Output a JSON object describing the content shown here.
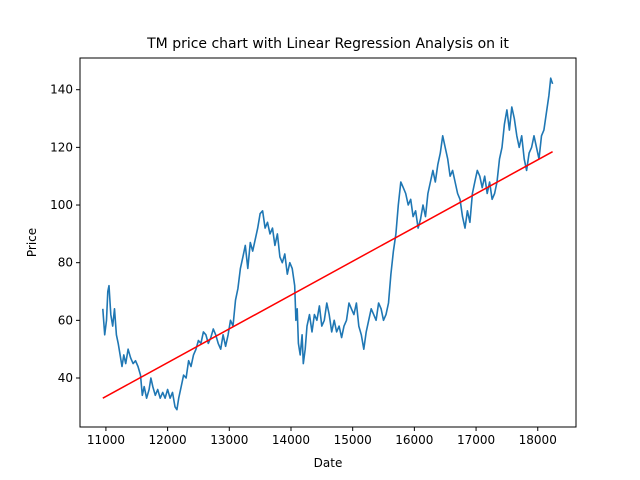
{
  "chart_data": {
    "type": "line",
    "title": "TM price chart with Linear Regression Analysis on it",
    "xlabel": "Date",
    "ylabel": "Price",
    "xlim": [
      10580,
      18620
    ],
    "ylim": [
      23,
      151
    ],
    "xticks": [
      11000,
      12000,
      13000,
      14000,
      15000,
      16000,
      17000,
      18000
    ],
    "yticks": [
      40,
      60,
      80,
      100,
      120,
      140
    ],
    "grid": false,
    "legend": "none",
    "series": [
      {
        "color": "#1f77b4",
        "kind": "line",
        "points": [
          [
            10950,
            64
          ],
          [
            10980,
            55
          ],
          [
            11010,
            60
          ],
          [
            11030,
            70
          ],
          [
            11050,
            72
          ],
          [
            11080,
            62
          ],
          [
            11110,
            58
          ],
          [
            11140,
            64
          ],
          [
            11170,
            55
          ],
          [
            11200,
            52
          ],
          [
            11230,
            48
          ],
          [
            11260,
            44
          ],
          [
            11290,
            48
          ],
          [
            11320,
            45
          ],
          [
            11360,
            50
          ],
          [
            11400,
            47
          ],
          [
            11440,
            45
          ],
          [
            11480,
            46
          ],
          [
            11520,
            44
          ],
          [
            11560,
            41
          ],
          [
            11590,
            34
          ],
          [
            11620,
            37
          ],
          [
            11660,
            33
          ],
          [
            11700,
            36
          ],
          [
            11730,
            40
          ],
          [
            11760,
            37
          ],
          [
            11800,
            34
          ],
          [
            11840,
            36
          ],
          [
            11880,
            33
          ],
          [
            11920,
            35
          ],
          [
            11960,
            33
          ],
          [
            12000,
            36
          ],
          [
            12040,
            33
          ],
          [
            12080,
            35
          ],
          [
            12120,
            30
          ],
          [
            12150,
            29
          ],
          [
            12180,
            33
          ],
          [
            12220,
            37
          ],
          [
            12260,
            41
          ],
          [
            12300,
            40
          ],
          [
            12340,
            46
          ],
          [
            12380,
            44
          ],
          [
            12420,
            48
          ],
          [
            12460,
            50
          ],
          [
            12500,
            53
          ],
          [
            12540,
            52
          ],
          [
            12580,
            56
          ],
          [
            12620,
            55
          ],
          [
            12660,
            52
          ],
          [
            12700,
            54
          ],
          [
            12740,
            57
          ],
          [
            12780,
            55
          ],
          [
            12820,
            52
          ],
          [
            12860,
            50
          ],
          [
            12900,
            55
          ],
          [
            12940,
            51
          ],
          [
            12980,
            55
          ],
          [
            13020,
            60
          ],
          [
            13060,
            58
          ],
          [
            13100,
            67
          ],
          [
            13140,
            71
          ],
          [
            13180,
            78
          ],
          [
            13220,
            82
          ],
          [
            13260,
            86
          ],
          [
            13300,
            78
          ],
          [
            13340,
            87
          ],
          [
            13380,
            84
          ],
          [
            13420,
            88
          ],
          [
            13460,
            92
          ],
          [
            13500,
            97
          ],
          [
            13540,
            98
          ],
          [
            13580,
            92
          ],
          [
            13620,
            94
          ],
          [
            13660,
            90
          ],
          [
            13700,
            92
          ],
          [
            13740,
            86
          ],
          [
            13780,
            90
          ],
          [
            13820,
            82
          ],
          [
            13860,
            80
          ],
          [
            13900,
            83
          ],
          [
            13940,
            76
          ],
          [
            13980,
            80
          ],
          [
            14020,
            78
          ],
          [
            14060,
            72
          ],
          [
            14080,
            60
          ],
          [
            14100,
            64
          ],
          [
            14120,
            52
          ],
          [
            14150,
            48
          ],
          [
            14180,
            55
          ],
          [
            14200,
            45
          ],
          [
            14230,
            50
          ],
          [
            14260,
            58
          ],
          [
            14300,
            62
          ],
          [
            14340,
            56
          ],
          [
            14380,
            62
          ],
          [
            14420,
            60
          ],
          [
            14460,
            65
          ],
          [
            14500,
            58
          ],
          [
            14540,
            60
          ],
          [
            14580,
            66
          ],
          [
            14620,
            62
          ],
          [
            14660,
            56
          ],
          [
            14700,
            60
          ],
          [
            14740,
            56
          ],
          [
            14780,
            58
          ],
          [
            14820,
            54
          ],
          [
            14860,
            58
          ],
          [
            14900,
            60
          ],
          [
            14940,
            66
          ],
          [
            14980,
            64
          ],
          [
            15020,
            62
          ],
          [
            15060,
            66
          ],
          [
            15100,
            58
          ],
          [
            15140,
            55
          ],
          [
            15180,
            50
          ],
          [
            15220,
            56
          ],
          [
            15260,
            60
          ],
          [
            15300,
            64
          ],
          [
            15340,
            62
          ],
          [
            15380,
            60
          ],
          [
            15420,
            66
          ],
          [
            15460,
            64
          ],
          [
            15500,
            60
          ],
          [
            15540,
            62
          ],
          [
            15580,
            66
          ],
          [
            15620,
            76
          ],
          [
            15660,
            84
          ],
          [
            15700,
            90
          ],
          [
            15740,
            100
          ],
          [
            15780,
            108
          ],
          [
            15820,
            106
          ],
          [
            15860,
            104
          ],
          [
            15900,
            100
          ],
          [
            15940,
            102
          ],
          [
            15980,
            96
          ],
          [
            16020,
            98
          ],
          [
            16060,
            92
          ],
          [
            16100,
            95
          ],
          [
            16140,
            100
          ],
          [
            16180,
            96
          ],
          [
            16220,
            104
          ],
          [
            16260,
            108
          ],
          [
            16300,
            112
          ],
          [
            16340,
            108
          ],
          [
            16380,
            114
          ],
          [
            16420,
            118
          ],
          [
            16460,
            124
          ],
          [
            16500,
            120
          ],
          [
            16540,
            116
          ],
          [
            16580,
            110
          ],
          [
            16620,
            112
          ],
          [
            16660,
            108
          ],
          [
            16700,
            104
          ],
          [
            16740,
            102
          ],
          [
            16780,
            96
          ],
          [
            16820,
            92
          ],
          [
            16860,
            98
          ],
          [
            16900,
            94
          ],
          [
            16940,
            104
          ],
          [
            16980,
            108
          ],
          [
            17020,
            112
          ],
          [
            17060,
            110
          ],
          [
            17100,
            106
          ],
          [
            17140,
            110
          ],
          [
            17180,
            104
          ],
          [
            17220,
            108
          ],
          [
            17260,
            102
          ],
          [
            17300,
            104
          ],
          [
            17340,
            108
          ],
          [
            17380,
            116
          ],
          [
            17420,
            120
          ],
          [
            17460,
            128
          ],
          [
            17500,
            133
          ],
          [
            17540,
            126
          ],
          [
            17580,
            134
          ],
          [
            17620,
            130
          ],
          [
            17660,
            124
          ],
          [
            17700,
            120
          ],
          [
            17740,
            124
          ],
          [
            17780,
            116
          ],
          [
            17820,
            112
          ],
          [
            17860,
            118
          ],
          [
            17900,
            120
          ],
          [
            17940,
            124
          ],
          [
            17980,
            120
          ],
          [
            18020,
            116
          ],
          [
            18060,
            124
          ],
          [
            18100,
            126
          ],
          [
            18140,
            132
          ],
          [
            18180,
            138
          ],
          [
            18210,
            144
          ],
          [
            18240,
            142
          ]
        ]
      },
      {
        "color": "#ff0000",
        "kind": "regression",
        "points": [
          [
            10950,
            33
          ],
          [
            18240,
            118.5
          ]
        ]
      }
    ]
  }
}
